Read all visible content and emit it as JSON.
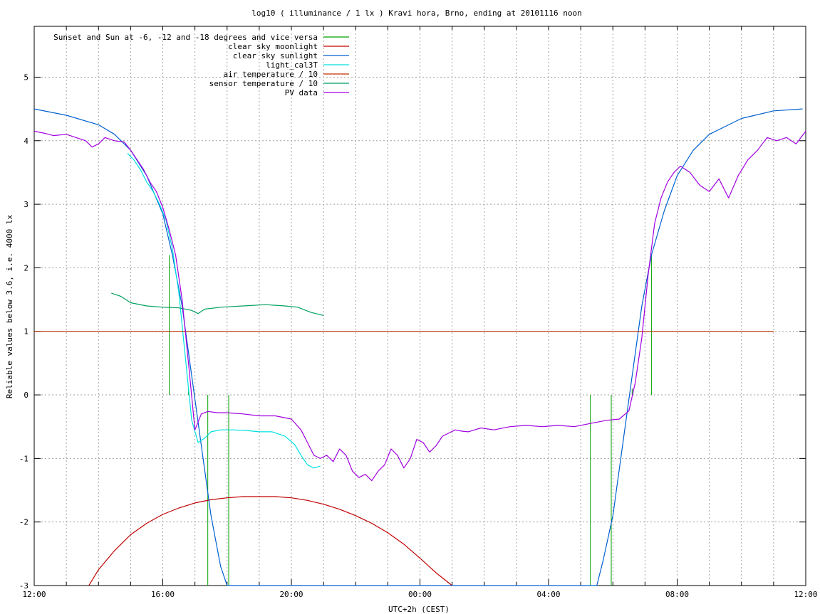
{
  "chart_data": {
    "type": "line",
    "title": "log10 ( illuminance / 1 lx ) Kravi hora, Brno, ending at 20101116 noon",
    "xlabel": "UTC+2h (CEST)",
    "ylabel": "Reliable values below 3.6, i.e. 4000 lx",
    "xlim": [
      12,
      36
    ],
    "ylim": [
      -3,
      5.8
    ],
    "grid": true,
    "legend_position": "top-left",
    "x_ticks": [
      {
        "value": 12,
        "label": "12:00"
      },
      {
        "value": 16,
        "label": "16:00"
      },
      {
        "value": 20,
        "label": "20:00"
      },
      {
        "value": 24,
        "label": "00:00"
      },
      {
        "value": 28,
        "label": "04:00"
      },
      {
        "value": 32,
        "label": "08:00"
      },
      {
        "value": 36,
        "label": "12:00"
      }
    ],
    "x_grid_step_hours": 1,
    "y_ticks": [
      {
        "value": -3,
        "label": "-3"
      },
      {
        "value": -2,
        "label": "-2"
      },
      {
        "value": -1,
        "label": "-1"
      },
      {
        "value": 0,
        "label": "0"
      },
      {
        "value": 1,
        "label": "1"
      },
      {
        "value": 2,
        "label": "2"
      },
      {
        "value": 3,
        "label": "3"
      },
      {
        "value": 4,
        "label": "4"
      },
      {
        "value": 5,
        "label": "5"
      }
    ],
    "series": [
      {
        "name": "Sunset and Sun at -6, -12 and -18 degrees and vice versa",
        "color": "#00a000",
        "kind": "vlines",
        "lines": [
          {
            "x": 16.2,
            "y0": 0,
            "y1": 2.2
          },
          {
            "x": 16.8,
            "y0": 0,
            "y1": 0.1
          },
          {
            "x": 17.4,
            "y0": -3,
            "y1": 0
          },
          {
            "x": 18.05,
            "y0": -3,
            "y1": 0
          },
          {
            "x": 29.3,
            "y0": -3,
            "y1": 0
          },
          {
            "x": 29.95,
            "y0": -3,
            "y1": 0
          },
          {
            "x": 30.6,
            "y0": 0,
            "y1": 0.1
          },
          {
            "x": 31.2,
            "y0": 0,
            "y1": 2.2
          }
        ]
      },
      {
        "name": "clear sky moonlight",
        "color": "#c00000",
        "x": [
          13.7,
          14.0,
          14.5,
          15.0,
          15.5,
          16.0,
          16.5,
          17.0,
          17.5,
          18.0,
          18.5,
          19.0,
          19.5,
          20.0,
          20.5,
          21.0,
          21.5,
          22.0,
          22.5,
          23.0,
          23.5,
          24.0,
          24.5,
          25.0
        ],
        "y": [
          -3.0,
          -2.75,
          -2.45,
          -2.2,
          -2.02,
          -1.88,
          -1.78,
          -1.7,
          -1.65,
          -1.62,
          -1.6,
          -1.6,
          -1.6,
          -1.62,
          -1.66,
          -1.72,
          -1.8,
          -1.9,
          -2.02,
          -2.17,
          -2.35,
          -2.57,
          -2.8,
          -3.0
        ]
      },
      {
        "name": "clear sky sunlight",
        "color": "#0060d0",
        "x": [
          12.0,
          13.0,
          14.0,
          14.5,
          15.0,
          15.5,
          16.0,
          16.3,
          16.6,
          16.9,
          17.2,
          17.5,
          17.8,
          18.0,
          29.5,
          29.7,
          30.0,
          30.3,
          30.6,
          30.9,
          31.2,
          31.6,
          32.0,
          32.5,
          33.0,
          34.0,
          35.0,
          35.9
        ],
        "y": [
          4.5,
          4.4,
          4.25,
          4.1,
          3.85,
          3.45,
          2.85,
          2.2,
          1.4,
          0.3,
          -0.8,
          -1.9,
          -2.7,
          -3.0,
          -3.0,
          -2.6,
          -1.9,
          -0.8,
          0.3,
          1.4,
          2.2,
          2.9,
          3.45,
          3.85,
          4.1,
          4.35,
          4.47,
          4.5
        ]
      },
      {
        "name": "light_cal3T",
        "color": "#00e0e0",
        "x": [
          14.9,
          15.1,
          15.3,
          15.5,
          15.7,
          15.9,
          16.1,
          16.3,
          16.5,
          16.7,
          16.9,
          17.1,
          17.3,
          17.5,
          17.8,
          18.2,
          18.6,
          19.0,
          19.4,
          19.8,
          20.1,
          20.3,
          20.5,
          20.7,
          20.9
        ],
        "y": [
          3.8,
          3.7,
          3.55,
          3.35,
          3.2,
          3.0,
          2.75,
          2.3,
          1.6,
          0.6,
          -0.4,
          -0.75,
          -0.68,
          -0.58,
          -0.55,
          -0.55,
          -0.56,
          -0.58,
          -0.58,
          -0.65,
          -0.78,
          -0.95,
          -1.1,
          -1.15,
          -1.12
        ]
      },
      {
        "name": "air temperature / 10",
        "color": "#c03000",
        "x": [
          12.0,
          35.0
        ],
        "y": [
          1.0,
          1.0
        ]
      },
      {
        "name": "sensor temperature / 10",
        "color": "#00a060",
        "x": [
          14.4,
          14.7,
          15.0,
          15.5,
          16.0,
          16.5,
          16.9,
          17.1,
          17.3,
          17.8,
          18.5,
          19.2,
          19.8,
          20.2,
          20.6,
          21.0
        ],
        "y": [
          1.6,
          1.55,
          1.45,
          1.4,
          1.38,
          1.37,
          1.33,
          1.28,
          1.35,
          1.38,
          1.4,
          1.42,
          1.4,
          1.38,
          1.3,
          1.25
        ]
      },
      {
        "name": "PV data",
        "color": "#a000e0",
        "x": [
          12.0,
          12.3,
          12.6,
          13.0,
          13.3,
          13.6,
          13.8,
          14.0,
          14.2,
          14.5,
          14.8,
          15.0,
          15.2,
          15.4,
          15.6,
          15.8,
          16.0,
          16.2,
          16.4,
          16.6,
          16.8,
          17.0,
          17.2,
          17.4,
          17.7,
          18.0,
          18.5,
          19.0,
          19.5,
          20.0,
          20.3,
          20.5,
          20.7,
          20.9,
          21.1,
          21.3,
          21.5,
          21.7,
          21.9,
          22.1,
          22.3,
          22.5,
          22.7,
          22.9,
          23.1,
          23.3,
          23.5,
          23.7,
          23.9,
          24.1,
          24.3,
          24.5,
          24.7,
          24.9,
          25.1,
          25.3,
          25.5,
          25.7,
          25.9,
          26.3,
          26.8,
          27.3,
          27.8,
          28.3,
          28.8,
          29.3,
          29.8,
          30.2,
          30.5,
          30.7,
          30.9,
          31.1,
          31.3,
          31.5,
          31.7,
          31.9,
          32.1,
          32.4,
          32.7,
          33.0,
          33.3,
          33.6,
          33.9,
          34.2,
          34.5,
          34.8,
          35.1,
          35.4,
          35.7,
          36.0
        ],
        "y": [
          4.15,
          4.12,
          4.08,
          4.1,
          4.05,
          4.0,
          3.9,
          3.95,
          4.05,
          4.0,
          3.98,
          3.85,
          3.7,
          3.55,
          3.35,
          3.2,
          2.95,
          2.6,
          2.2,
          1.5,
          0.5,
          -0.55,
          -0.3,
          -0.26,
          -0.28,
          -0.28,
          -0.3,
          -0.33,
          -0.33,
          -0.38,
          -0.55,
          -0.75,
          -0.95,
          -1.0,
          -0.95,
          -1.05,
          -0.85,
          -0.95,
          -1.2,
          -1.3,
          -1.25,
          -1.35,
          -1.2,
          -1.1,
          -0.85,
          -0.95,
          -1.15,
          -1.0,
          -0.7,
          -0.75,
          -0.9,
          -0.8,
          -0.65,
          -0.6,
          -0.55,
          -0.57,
          -0.58,
          -0.55,
          -0.52,
          -0.55,
          -0.5,
          -0.48,
          -0.5,
          -0.48,
          -0.5,
          -0.45,
          -0.4,
          -0.38,
          -0.25,
          0.2,
          0.9,
          1.9,
          2.7,
          3.1,
          3.35,
          3.5,
          3.6,
          3.5,
          3.3,
          3.2,
          3.4,
          3.1,
          3.45,
          3.7,
          3.85,
          4.05,
          4.0,
          4.05,
          3.95,
          4.15
        ]
      }
    ]
  }
}
